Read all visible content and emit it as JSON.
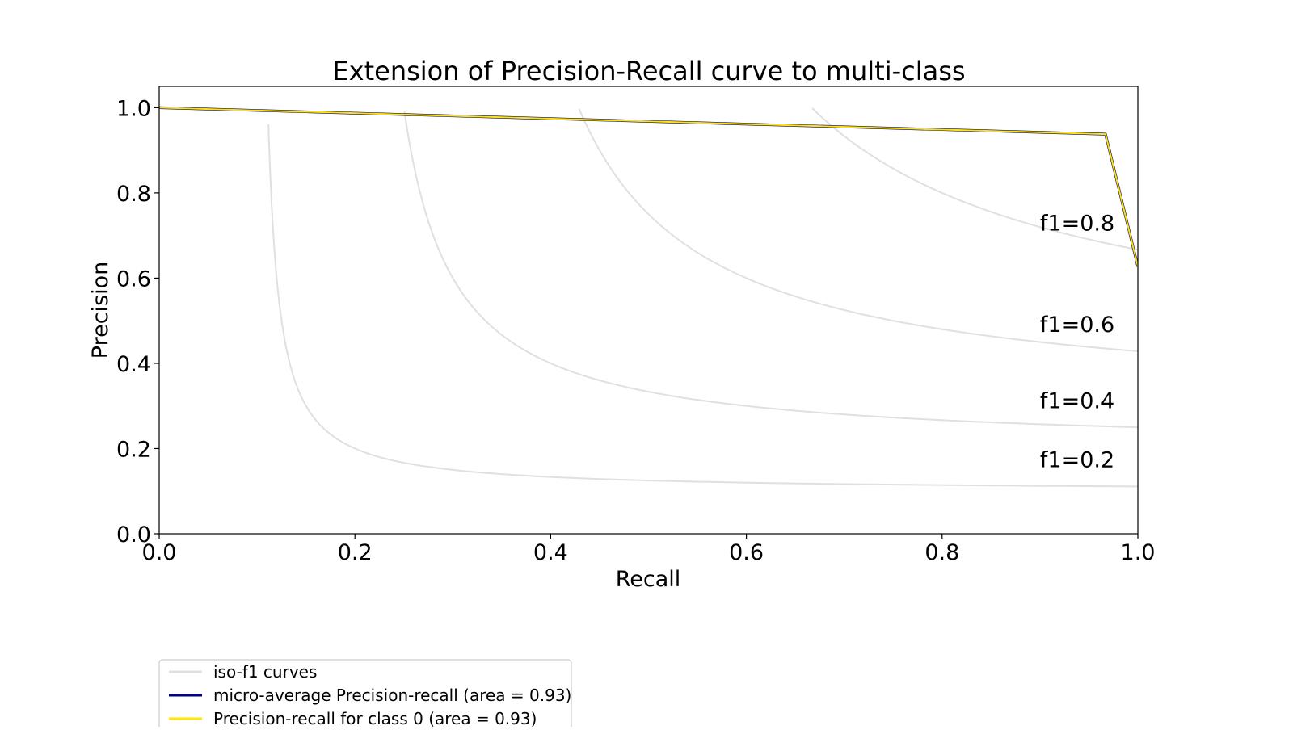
{
  "chart_data": {
    "type": "line",
    "title": "Extension of Precision-Recall curve to multi-class",
    "xlabel": "Recall",
    "ylabel": "Precision",
    "xlim": [
      0.0,
      1.0
    ],
    "ylim": [
      0.0,
      1.05
    ],
    "x_ticks": [
      "0.0",
      "0.2",
      "0.4",
      "0.6",
      "0.8",
      "1.0"
    ],
    "y_ticks": [
      "0.0",
      "0.2",
      "0.4",
      "0.6",
      "0.8",
      "1.0"
    ],
    "grid": false,
    "legend_position": "below-left",
    "iso_f1": {
      "values": [
        0.2,
        0.4,
        0.6,
        0.8
      ],
      "labels": [
        "f1=0.2",
        "f1=0.4",
        "f1=0.6",
        "f1=0.8"
      ],
      "color": "#e0e0e0"
    },
    "series": [
      {
        "name": "micro-average Precision-recall (area = 0.93)",
        "color": "#000080",
        "x": [
          0.0,
          0.967,
          1.0
        ],
        "y": [
          1.0,
          0.938,
          0.627
        ]
      },
      {
        "name": "Precision-recall for class 0 (area = 0.93)",
        "color": "#ffe600",
        "x": [
          0.0,
          0.967,
          1.0
        ],
        "y": [
          1.0,
          0.938,
          0.627
        ]
      }
    ],
    "legend": [
      {
        "label": "iso-f1 curves",
        "color": "#e0e0e0"
      },
      {
        "label": "micro-average Precision-recall (area = 0.93)",
        "color": "#000080"
      },
      {
        "label": "Precision-recall for class 0 (area = 0.93)",
        "color": "#ffe600"
      }
    ]
  }
}
